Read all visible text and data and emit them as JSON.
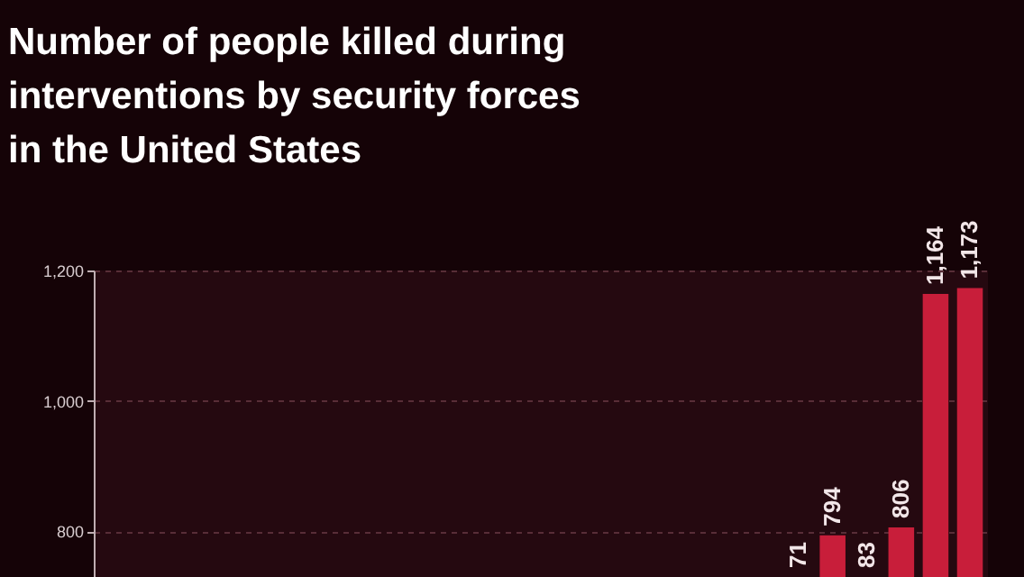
{
  "chart_data": {
    "type": "bar",
    "title": "Number of people killed during\ninterventions by security forces\nin the United States",
    "categories": [
      null,
      null,
      null,
      null,
      null,
      null,
      null,
      null,
      null,
      null,
      null,
      null,
      null,
      null,
      null,
      null,
      null,
      null,
      null,
      null,
      null,
      null,
      null,
      null,
      null,
      null
    ],
    "values": [
      null,
      null,
      null,
      null,
      null,
      null,
      null,
      null,
      null,
      null,
      null,
      null,
      null,
      null,
      null,
      null,
      null,
      null,
      null,
      null,
      null,
      794,
      null,
      806,
      1164,
      1173
    ],
    "value_labels": [
      null,
      null,
      null,
      null,
      null,
      null,
      null,
      null,
      null,
      null,
      null,
      null,
      null,
      null,
      null,
      null,
      null,
      null,
      null,
      null,
      "71",
      "794",
      "83",
      "806",
      "1,164",
      "1,173"
    ],
    "color": "#c81e3a",
    "ylim": [
      730,
      1200
    ],
    "yticks": [
      {
        "value": 800,
        "label": "800"
      },
      {
        "value": 1000,
        "label": "1,000"
      },
      {
        "value": 1200,
        "label": "1,200"
      }
    ],
    "grid": "y",
    "tick_labels": "y"
  }
}
